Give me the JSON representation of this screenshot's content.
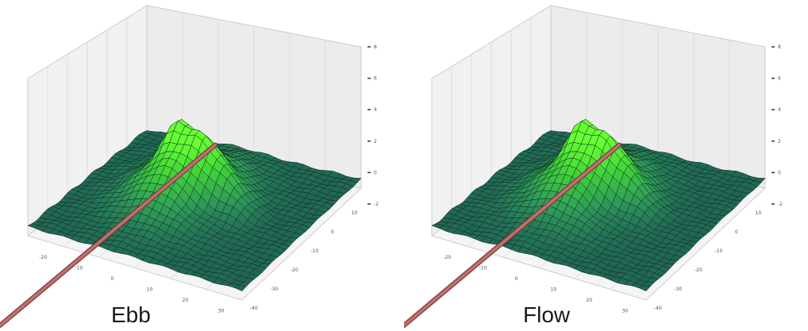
{
  "chart_data": [
    {
      "type": "surface",
      "title": "Ebb",
      "x_ticks": [
        "-20",
        "-10",
        "0",
        "10",
        "20",
        "30"
      ],
      "y_ticks": [
        "-40",
        "-30",
        "-20",
        "-10",
        "0",
        "10"
      ],
      "z_ticks": [
        "-2",
        "0",
        "2",
        "4",
        "6",
        "8"
      ],
      "xlim": [
        -25,
        30
      ],
      "ylim": [
        -40,
        15
      ],
      "zlim": [
        -2,
        8
      ],
      "grid": true,
      "colormap": [
        "#1f5f55",
        "#2f9a5a",
        "#3fcf3a",
        "#66ff33"
      ],
      "line_color": "#c07070"
    },
    {
      "type": "surface",
      "title": "Flow",
      "x_ticks": [
        "-20",
        "-10",
        "0",
        "10",
        "20",
        "30"
      ],
      "y_ticks": [
        "-40",
        "-30",
        "-20",
        "-10",
        "0",
        "10"
      ],
      "z_ticks": [
        "-2",
        "0",
        "2",
        "4",
        "6",
        "8"
      ],
      "xlim": [
        -25,
        30
      ],
      "ylim": [
        -40,
        15
      ],
      "zlim": [
        -2,
        8
      ],
      "grid": true,
      "colormap": [
        "#1f5f55",
        "#2f9a5a",
        "#3fcf3a",
        "#66ff33"
      ],
      "line_color": "#c07070"
    }
  ]
}
